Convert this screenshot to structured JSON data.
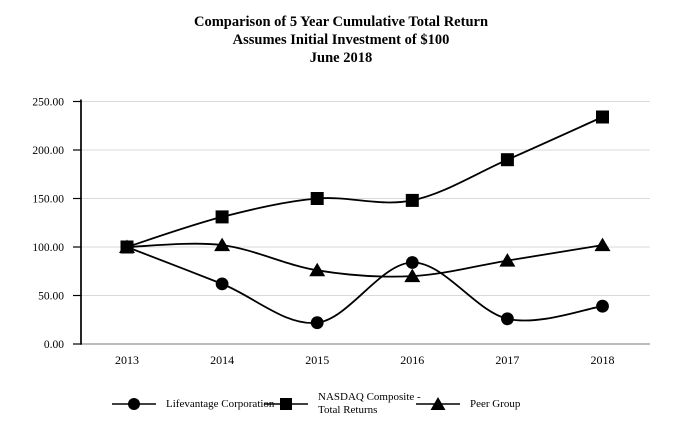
{
  "chart_data": {
    "type": "line",
    "title": "Comparison of 5 Year Cumulative Total Return",
    "subtitle": "Assumes Initial Investment of $100",
    "date_line": "June 2018",
    "categories": [
      "2013",
      "2014",
      "2015",
      "2016",
      "2017",
      "2018"
    ],
    "series": [
      {
        "name": "Lifevantage Corporation",
        "marker": "circle",
        "values": [
          100,
          62,
          22,
          84,
          26,
          39
        ]
      },
      {
        "name": "NASDAQ Composite -\nTotal Returns",
        "marker": "square",
        "values": [
          100,
          131,
          150,
          148,
          190,
          234
        ]
      },
      {
        "name": "Peer Group",
        "marker": "triangle",
        "values": [
          100,
          102,
          76,
          70,
          86,
          102
        ]
      }
    ],
    "xlabel": "",
    "ylabel": "",
    "ylim": [
      0,
      250
    ],
    "y_tick_values": [
      0,
      50,
      100,
      150,
      200,
      250
    ],
    "y_ticks": [
      "0.00",
      "50.00",
      "100.00",
      "150.00",
      "200.00",
      "250.00"
    ],
    "grid": "horizontal gridlines on",
    "legend_position": "bottom",
    "line_color": "#000000",
    "axis_color": "#000000",
    "grid_color": "#d9d9d9",
    "baseline_color": "#a6a6a6",
    "background_color": "#ffffff"
  }
}
